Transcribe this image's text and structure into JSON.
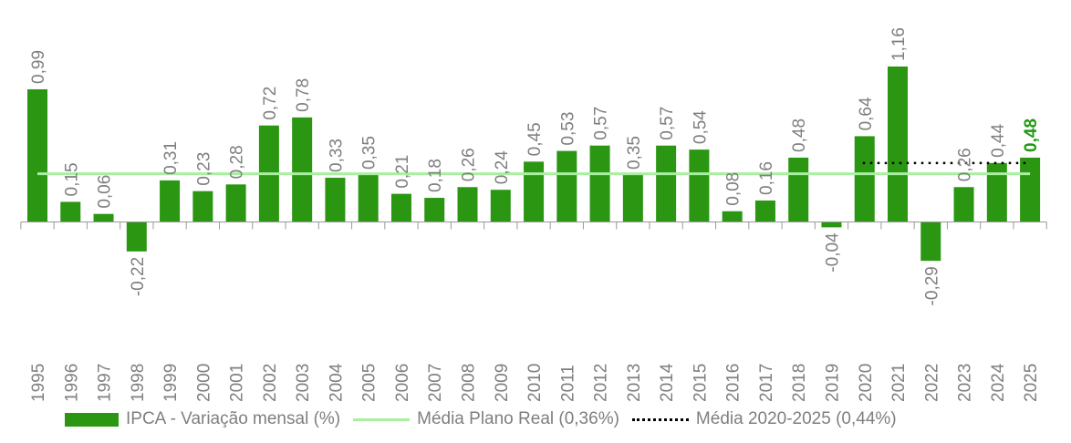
{
  "chart_data": {
    "type": "bar",
    "categories": [
      "1995",
      "1996",
      "1997",
      "1998",
      "1999",
      "2000",
      "2001",
      "2002",
      "2003",
      "2004",
      "2005",
      "2006",
      "2007",
      "2008",
      "2009",
      "2010",
      "2011",
      "2012",
      "2013",
      "2014",
      "2015",
      "2016",
      "2017",
      "2018",
      "2019",
      "2020",
      "2021",
      "2022",
      "2023",
      "2024",
      "2025"
    ],
    "series": [
      {
        "name": "IPCA - Variação mensal (%)",
        "values": [
          0.99,
          0.15,
          0.06,
          -0.22,
          0.31,
          0.23,
          0.28,
          0.72,
          0.78,
          0.33,
          0.35,
          0.21,
          0.18,
          0.26,
          0.24,
          0.45,
          0.53,
          0.57,
          0.35,
          0.57,
          0.54,
          0.08,
          0.16,
          0.48,
          -0.04,
          0.64,
          1.16,
          -0.29,
          0.26,
          0.44,
          0.48
        ],
        "color": "#2a9612"
      }
    ],
    "data_labels": [
      "0,99",
      "0,15",
      "0,06",
      "-0,22",
      "0,31",
      "0,23",
      "0,28",
      "0,72",
      "0,78",
      "0,33",
      "0,35",
      "0,21",
      "0,18",
      "0,26",
      "0,24",
      "0,45",
      "0,53",
      "0,57",
      "0,35",
      "0,57",
      "0,54",
      "0,08",
      "0,16",
      "0,48",
      "-0,04",
      "0,64",
      "1,16",
      "-0,29",
      "0,26",
      "0,44",
      "0,48"
    ],
    "highlight_label_color": "#1f9a12",
    "reference_lines": [
      {
        "name": "Média Plano Real (0,36%)",
        "value": 0.36,
        "from": "1995",
        "to": "2025",
        "color": "#a8f0a0",
        "style": "solid"
      },
      {
        "name": "Média 2020-2025 (0,44%)",
        "value": 0.44,
        "from": "2020",
        "to": "2025",
        "color": "#000000",
        "style": "dotted"
      }
    ],
    "ylim": [
      -0.8,
      1.65
    ],
    "grid": false,
    "legend_position": "bottom",
    "title": "",
    "xlabel": "",
    "ylabel": ""
  }
}
